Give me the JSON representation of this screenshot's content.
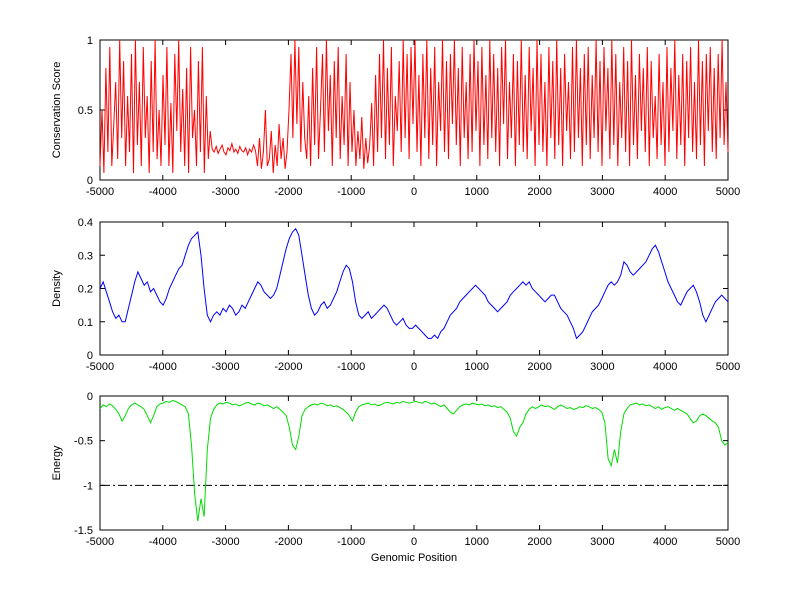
{
  "figure": {
    "background": "#ffffff",
    "xlabel": "Genomic Position"
  },
  "chart_data": [
    {
      "type": "line",
      "name": "conservation-score",
      "title": "",
      "ylabel": "Conservation Score",
      "xlabel": "",
      "xlim": [
        -5000,
        5000
      ],
      "ylim": [
        0,
        1
      ],
      "xticks": [
        -5000,
        -4000,
        -3000,
        -2000,
        -1000,
        0,
        1000,
        2000,
        3000,
        4000,
        5000
      ],
      "yticks": [
        0,
        0.5,
        1
      ],
      "color": "#ff0000",
      "line_width": 1,
      "grid": false,
      "legend": null,
      "x_sampling": "uniform from -5000 to 5000",
      "values": [
        0.1,
        0.5,
        0.05,
        0.8,
        0.2,
        0.95,
        0.1,
        0.4,
        0.7,
        0.15,
        1,
        0.3,
        0.85,
        0.1,
        0.6,
        0.2,
        0.9,
        0.05,
        1,
        0.25,
        0.7,
        0.1,
        0.95,
        0.3,
        0.6,
        0.05,
        0.85,
        0.2,
        1,
        0.15,
        0.5,
        0.1,
        0.75,
        0.25,
        0.95,
        0.1,
        0.55,
        0.05,
        0.9,
        0.35,
        1,
        0.2,
        0.65,
        0.1,
        0.8,
        0.05,
        0.95,
        0.3,
        0.5,
        0.1,
        0.85,
        0.2,
        0.95,
        0.05,
        0.6,
        0.15,
        0.35,
        0.22,
        0.2,
        0.24,
        0.19,
        0.22,
        0.25,
        0.2,
        0.18,
        0.23,
        0.21,
        0.26,
        0.2,
        0.22,
        0.19,
        0.24,
        0.21,
        0.2,
        0.23,
        0.18,
        0.22,
        0.2,
        0.25,
        0.21,
        0.1,
        0.3,
        0.08,
        0.2,
        0.5,
        0.1,
        0.15,
        0.35,
        0.05,
        0.25,
        0.1,
        0.4,
        0.15,
        0.3,
        0.08,
        0.2,
        0.5,
        0.9,
        0.3,
        1,
        0.4,
        0.95,
        0.2,
        0.7,
        0.3,
        0.15,
        0.6,
        0.1,
        0.8,
        0.25,
        0.95,
        0.15,
        0.5,
        0.9,
        0.2,
        1,
        0.35,
        0.75,
        0.1,
        0.85,
        0.3,
        0.95,
        0.15,
        0.6,
        0.25,
        0.9,
        0.1,
        0.7,
        0.2,
        0.5,
        0.1,
        0.35,
        0.15,
        0.45,
        0.08,
        0.3,
        0.12,
        0.25,
        0.55,
        0.1,
        0.75,
        0.2,
        0.9,
        0.3,
        1,
        0.15,
        0.8,
        0.25,
        0.95,
        0.1,
        0.6,
        0.35,
        0.85,
        0.2,
        1,
        0.3,
        0.9,
        0.15,
        0.95,
        0.4,
        1,
        0.2,
        0.75,
        0.1,
        0.9,
        0.3,
        1,
        0.15,
        0.8,
        0.25,
        0.95,
        0.1,
        0.7,
        0.35,
        1,
        0.2,
        0.85,
        0.15,
        0.9,
        0.4,
        1,
        0.25,
        0.8,
        0.1,
        0.95,
        0.3,
        0.7,
        0.15,
        0.9,
        0.2,
        1,
        0.35,
        0.85,
        0.1,
        0.95,
        0.25,
        0.75,
        0.15,
        1,
        0.3,
        0.9,
        0.2,
        0.8,
        0.1,
        0.95,
        0.4,
        1,
        0.15,
        0.7,
        0.3,
        0.9,
        0.1,
        0.85,
        0.25,
        1,
        0.2,
        0.75,
        0.15,
        0.95,
        0.35,
        0.8,
        0.1,
        1,
        0.25,
        0.9,
        0.2,
        0.7,
        0.1,
        0.95,
        0.3,
        0.85,
        0.15,
        1,
        0.25,
        0.8,
        0.1,
        0.9,
        0.35,
        0.7,
        0.15,
        0.95,
        0.2,
        1,
        0.3,
        0.8,
        0.1,
        0.9,
        0.25,
        0.95,
        0.15,
        0.75,
        0.3,
        1,
        0.2,
        0.85,
        0.1,
        0.95,
        0.35,
        0.8,
        0.15,
        1,
        0.25,
        0.9,
        0.1,
        0.7,
        0.3,
        0.95,
        0.2,
        0.85,
        0.1,
        1,
        0.25,
        0.75,
        0.15,
        0.9,
        0.35,
        0.8,
        0.2,
        0.95,
        0.1,
        0.85,
        0.3,
        0.6,
        0.15,
        0.9,
        0.25,
        0.7,
        0.1,
        0.95,
        0.2,
        0.8,
        0.35,
        1,
        0.15,
        0.75,
        0.25,
        0.9,
        0.1,
        0.85,
        0.3,
        0.95,
        0.2,
        0.7,
        0.15,
        1,
        0.25,
        0.85,
        0.1,
        0.9,
        0.35,
        0.95,
        0.2,
        0.8,
        0.15,
        0.9,
        0.3,
        1,
        0.25,
        0.7,
        0.2
      ]
    },
    {
      "type": "line",
      "name": "density",
      "title": "",
      "ylabel": "Density",
      "xlabel": "",
      "xlim": [
        -5000,
        5000
      ],
      "ylim": [
        0,
        0.4
      ],
      "xticks": [
        -5000,
        -4000,
        -3000,
        -2000,
        -1000,
        0,
        1000,
        2000,
        3000,
        4000,
        5000
      ],
      "yticks": [
        0,
        0.1,
        0.2,
        0.3,
        0.4
      ],
      "color": "#0000ff",
      "line_width": 1,
      "grid": false,
      "legend": null,
      "x_sampling": "uniform from -5000 to 5000",
      "values": [
        0.2,
        0.22,
        0.19,
        0.16,
        0.13,
        0.11,
        0.12,
        0.1,
        0.1,
        0.14,
        0.18,
        0.22,
        0.25,
        0.23,
        0.21,
        0.22,
        0.19,
        0.2,
        0.18,
        0.16,
        0.15,
        0.17,
        0.2,
        0.22,
        0.24,
        0.26,
        0.27,
        0.3,
        0.33,
        0.35,
        0.36,
        0.37,
        0.3,
        0.2,
        0.12,
        0.1,
        0.12,
        0.13,
        0.12,
        0.14,
        0.13,
        0.15,
        0.14,
        0.12,
        0.13,
        0.15,
        0.14,
        0.16,
        0.18,
        0.2,
        0.22,
        0.21,
        0.19,
        0.18,
        0.17,
        0.18,
        0.2,
        0.24,
        0.28,
        0.32,
        0.35,
        0.37,
        0.38,
        0.36,
        0.3,
        0.24,
        0.18,
        0.14,
        0.12,
        0.13,
        0.15,
        0.16,
        0.14,
        0.15,
        0.17,
        0.19,
        0.22,
        0.25,
        0.27,
        0.26,
        0.22,
        0.16,
        0.12,
        0.11,
        0.12,
        0.13,
        0.11,
        0.12,
        0.13,
        0.14,
        0.15,
        0.14,
        0.12,
        0.1,
        0.09,
        0.1,
        0.11,
        0.09,
        0.08,
        0.08,
        0.09,
        0.08,
        0.07,
        0.06,
        0.05,
        0.05,
        0.06,
        0.05,
        0.07,
        0.08,
        0.1,
        0.12,
        0.13,
        0.14,
        0.16,
        0.17,
        0.18,
        0.19,
        0.2,
        0.21,
        0.2,
        0.19,
        0.18,
        0.16,
        0.15,
        0.14,
        0.13,
        0.14,
        0.15,
        0.16,
        0.18,
        0.19,
        0.2,
        0.21,
        0.22,
        0.21,
        0.22,
        0.2,
        0.19,
        0.18,
        0.17,
        0.16,
        0.17,
        0.18,
        0.18,
        0.16,
        0.14,
        0.13,
        0.12,
        0.1,
        0.08,
        0.05,
        0.06,
        0.07,
        0.09,
        0.11,
        0.13,
        0.14,
        0.15,
        0.17,
        0.19,
        0.21,
        0.22,
        0.21,
        0.22,
        0.24,
        0.28,
        0.27,
        0.25,
        0.24,
        0.25,
        0.26,
        0.27,
        0.28,
        0.3,
        0.32,
        0.33,
        0.31,
        0.28,
        0.25,
        0.22,
        0.2,
        0.18,
        0.16,
        0.15,
        0.17,
        0.19,
        0.2,
        0.21,
        0.19,
        0.16,
        0.12,
        0.1,
        0.12,
        0.14,
        0.16,
        0.17,
        0.18,
        0.17,
        0.16
      ]
    },
    {
      "type": "line",
      "name": "energy",
      "title": "",
      "ylabel": "Energy",
      "xlabel": "Genomic Position",
      "xlim": [
        -5000,
        5000
      ],
      "ylim": [
        -1.5,
        0
      ],
      "xticks": [
        -5000,
        -4000,
        -3000,
        -2000,
        -1000,
        0,
        1000,
        2000,
        3000,
        4000,
        5000
      ],
      "yticks": [
        -1.5,
        -1,
        -0.5,
        0
      ],
      "color": "#00dd00",
      "line_width": 1,
      "grid": false,
      "legend": null,
      "refline": {
        "y": -1,
        "color": "#000000",
        "style": "dash-dot"
      },
      "x_sampling": "uniform from -5000 to 5000",
      "values": [
        -0.14,
        -0.1,
        -0.12,
        -0.09,
        -0.11,
        -0.15,
        -0.2,
        -0.28,
        -0.22,
        -0.14,
        -0.1,
        -0.08,
        -0.1,
        -0.12,
        -0.15,
        -0.22,
        -0.3,
        -0.22,
        -0.12,
        -0.09,
        -0.08,
        -0.06,
        -0.07,
        -0.05,
        -0.06,
        -0.08,
        -0.1,
        -0.12,
        -0.2,
        -0.55,
        -1.1,
        -1.4,
        -1.15,
        -1.35,
        -0.6,
        -0.25,
        -0.15,
        -0.1,
        -0.08,
        -0.09,
        -0.07,
        -0.08,
        -0.1,
        -0.09,
        -0.11,
        -0.1,
        -0.08,
        -0.07,
        -0.09,
        -0.1,
        -0.08,
        -0.09,
        -0.11,
        -0.1,
        -0.12,
        -0.14,
        -0.12,
        -0.15,
        -0.18,
        -0.22,
        -0.35,
        -0.55,
        -0.6,
        -0.45,
        -0.22,
        -0.15,
        -0.12,
        -0.1,
        -0.09,
        -0.1,
        -0.08,
        -0.09,
        -0.11,
        -0.1,
        -0.12,
        -0.11,
        -0.13,
        -0.15,
        -0.18,
        -0.22,
        -0.28,
        -0.18,
        -0.12,
        -0.1,
        -0.09,
        -0.08,
        -0.1,
        -0.09,
        -0.11,
        -0.1,
        -0.08,
        -0.07,
        -0.08,
        -0.09,
        -0.07,
        -0.08,
        -0.06,
        -0.07,
        -0.08,
        -0.07,
        -0.06,
        -0.07,
        -0.08,
        -0.06,
        -0.07,
        -0.09,
        -0.08,
        -0.1,
        -0.12,
        -0.1,
        -0.14,
        -0.18,
        -0.2,
        -0.16,
        -0.12,
        -0.1,
        -0.09,
        -0.1,
        -0.08,
        -0.09,
        -0.1,
        -0.09,
        -0.11,
        -0.1,
        -0.12,
        -0.11,
        -0.13,
        -0.12,
        -0.15,
        -0.18,
        -0.25,
        -0.4,
        -0.45,
        -0.35,
        -0.3,
        -0.2,
        -0.15,
        -0.12,
        -0.14,
        -0.12,
        -0.1,
        -0.12,
        -0.11,
        -0.13,
        -0.15,
        -0.12,
        -0.1,
        -0.12,
        -0.14,
        -0.13,
        -0.15,
        -0.14,
        -0.12,
        -0.13,
        -0.11,
        -0.12,
        -0.14,
        -0.13,
        -0.15,
        -0.18,
        -0.3,
        -0.7,
        -0.78,
        -0.6,
        -0.75,
        -0.4,
        -0.2,
        -0.14,
        -0.1,
        -0.09,
        -0.08,
        -0.1,
        -0.09,
        -0.11,
        -0.1,
        -0.12,
        -0.14,
        -0.12,
        -0.15,
        -0.13,
        -0.12,
        -0.14,
        -0.16,
        -0.14,
        -0.16,
        -0.18,
        -0.2,
        -0.25,
        -0.3,
        -0.28,
        -0.22,
        -0.2,
        -0.22,
        -0.25,
        -0.28,
        -0.3,
        -0.35,
        -0.5,
        -0.55,
        -0.52
      ]
    }
  ]
}
